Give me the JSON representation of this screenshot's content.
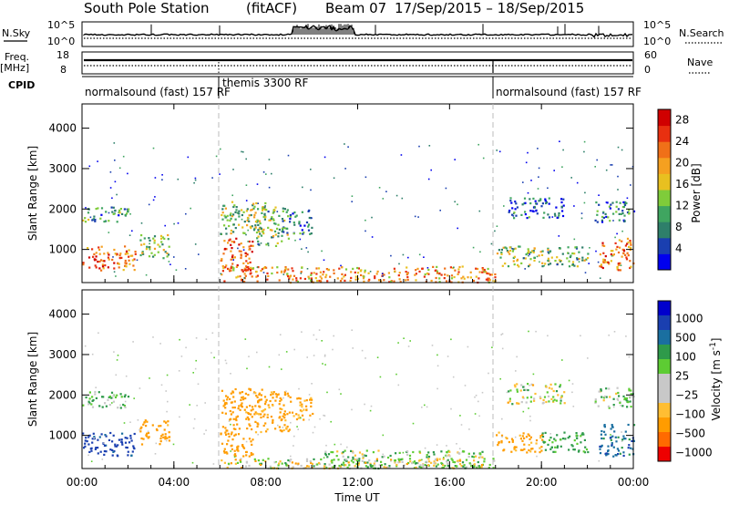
{
  "header": {
    "station": "South Pole Station",
    "fit": "(fitACF)",
    "beam": "Beam 07",
    "dates": "17/Sep/2015 – 18/Sep/2015"
  },
  "strips": {
    "nsky_label": "N.Sky",
    "nsky_top": "10^5",
    "nsky_bottom": "10^0",
    "nsearch_label": "N.Search",
    "nsearch_top": "10^5",
    "nsearch_bottom": "10^0",
    "freq_label": "Freq.",
    "freq_unit": "[MHz]",
    "freq_top": "18",
    "freq_bottom": "8",
    "nave_label": "Nave",
    "nave_top": "60",
    "nave_bottom": "0",
    "cpid_label": "CPID",
    "cpid_segments": [
      {
        "name": "normalsound (fast) 157 RF",
        "start_hour": 0,
        "end_hour": 6
      },
      {
        "name": "themis 3300 RF",
        "start_hour": 6,
        "end_hour": 18
      },
      {
        "name": "normalsound (fast) 157 RF",
        "start_hour": 18,
        "end_hour": 24
      }
    ]
  },
  "colors": {
    "power_scale": [
      "#0000ee",
      "#1a3fb0",
      "#2e7f6a",
      "#3fa560",
      "#7fcc3a",
      "#e8c020",
      "#f5a020",
      "#f07018",
      "#e83010",
      "#d00000"
    ],
    "velocity_scale": [
      "#ee0000",
      "#ff6a00",
      "#ff9c00",
      "#ffbe33",
      "#c8c8c8",
      "#c8c8c8",
      "#5dcc33",
      "#2e9a4a",
      "#1a6fa0",
      "#1a3fb0",
      "#0000cc"
    ],
    "ground_gray": "#aaaaaa"
  },
  "chart_data": [
    {
      "type": "heatmap",
      "panel": "power",
      "xlabel": "Time UT",
      "ylabel": "Slant Range [km]",
      "xlim": [
        0,
        24
      ],
      "ylim": [
        180,
        4600
      ],
      "yticks": [
        1000,
        2000,
        3000,
        4000
      ],
      "colorbar_label": "Power [dB]",
      "colorbar_ticks": [
        4,
        8,
        12,
        16,
        20,
        24,
        28
      ],
      "colorbar_range": [
        0,
        30
      ],
      "scatter_regions": [
        {
          "t0": 0.0,
          "t1": 2.3,
          "r0": 500,
          "r1": 1100,
          "level": 22
        },
        {
          "t0": 0.0,
          "t1": 2.0,
          "r0": 1700,
          "r1": 2100,
          "level": 9
        },
        {
          "t0": 2.5,
          "t1": 3.8,
          "r0": 800,
          "r1": 1400,
          "level": 14
        },
        {
          "t0": 6.0,
          "t1": 7.4,
          "r0": 500,
          "r1": 1300,
          "level": 23
        },
        {
          "t0": 6.0,
          "t1": 8.0,
          "r0": 1400,
          "r1": 2200,
          "level": 13
        },
        {
          "t0": 7.5,
          "t1": 9.0,
          "r0": 1100,
          "r1": 2100,
          "level": 12
        },
        {
          "t0": 9.0,
          "t1": 10.0,
          "r0": 1400,
          "r1": 2000,
          "level": 8
        },
        {
          "t0": 18.0,
          "t1": 20.0,
          "r0": 600,
          "r1": 1100,
          "level": 14
        },
        {
          "t0": 20.0,
          "t1": 22.0,
          "r0": 600,
          "r1": 1100,
          "level": 12
        },
        {
          "t0": 18.5,
          "t1": 21.0,
          "r0": 1800,
          "r1": 2300,
          "level": 6
        },
        {
          "t0": 22.5,
          "t1": 24.0,
          "r0": 500,
          "r1": 1300,
          "level": 22
        },
        {
          "t0": 22.3,
          "t1": 24.0,
          "r0": 1700,
          "r1": 2200,
          "level": 8
        },
        {
          "t0": 6.0,
          "t1": 18.0,
          "r0": 200,
          "r1": 600,
          "level": 20
        }
      ]
    },
    {
      "type": "heatmap",
      "panel": "velocity",
      "xlabel": "Time UT",
      "ylabel": "Slant Range [km]",
      "xlim": [
        0,
        24
      ],
      "ylim": [
        180,
        4600
      ],
      "xticks": [
        "00:00",
        "04:00",
        "08:00",
        "12:00",
        "16:00",
        "20:00",
        "00:00"
      ],
      "yticks": [
        1000,
        2000,
        3000,
        4000
      ],
      "colorbar_label": "Velocity [m s^-1]",
      "colorbar_ticks": [
        "1000",
        "500",
        "100",
        "25",
        "−25",
        "−100",
        "−500",
        "−1000"
      ],
      "scatter_regions": [
        {
          "t0": 0.0,
          "t1": 2.3,
          "r0": 500,
          "r1": 1100,
          "vel": 600
        },
        {
          "t0": 0.0,
          "t1": 2.0,
          "r0": 1700,
          "r1": 2100,
          "vel": 120
        },
        {
          "t0": 2.5,
          "t1": 3.8,
          "r0": 800,
          "r1": 1400,
          "vel": -200
        },
        {
          "t0": 6.0,
          "t1": 7.4,
          "r0": 500,
          "r1": 1300,
          "vel": -250
        },
        {
          "t0": 6.0,
          "t1": 8.0,
          "r0": 1400,
          "r1": 2200,
          "vel": -220
        },
        {
          "t0": 7.5,
          "t1": 9.0,
          "r0": 1100,
          "r1": 2100,
          "vel": -180
        },
        {
          "t0": 9.0,
          "t1": 10.0,
          "r0": 1400,
          "r1": 2000,
          "vel": -150
        },
        {
          "t0": 18.0,
          "t1": 20.0,
          "r0": 600,
          "r1": 1100,
          "vel": -160
        },
        {
          "t0": 20.0,
          "t1": 22.0,
          "r0": 600,
          "r1": 1100,
          "vel": 150
        },
        {
          "t0": 18.5,
          "t1": 21.0,
          "r0": 1800,
          "r1": 2300,
          "vel": 0
        },
        {
          "t0": 22.5,
          "t1": 24.0,
          "r0": 500,
          "r1": 1300,
          "vel": 400
        },
        {
          "t0": 22.3,
          "t1": 24.0,
          "r0": 1700,
          "r1": 2200,
          "vel": 80
        },
        {
          "t0": 10.5,
          "t1": 17.5,
          "r0": 200,
          "r1": 650,
          "vel": 60
        },
        {
          "t0": 6.0,
          "t1": 18.0,
          "r0": 200,
          "r1": 450,
          "vel": 0
        }
      ]
    }
  ]
}
